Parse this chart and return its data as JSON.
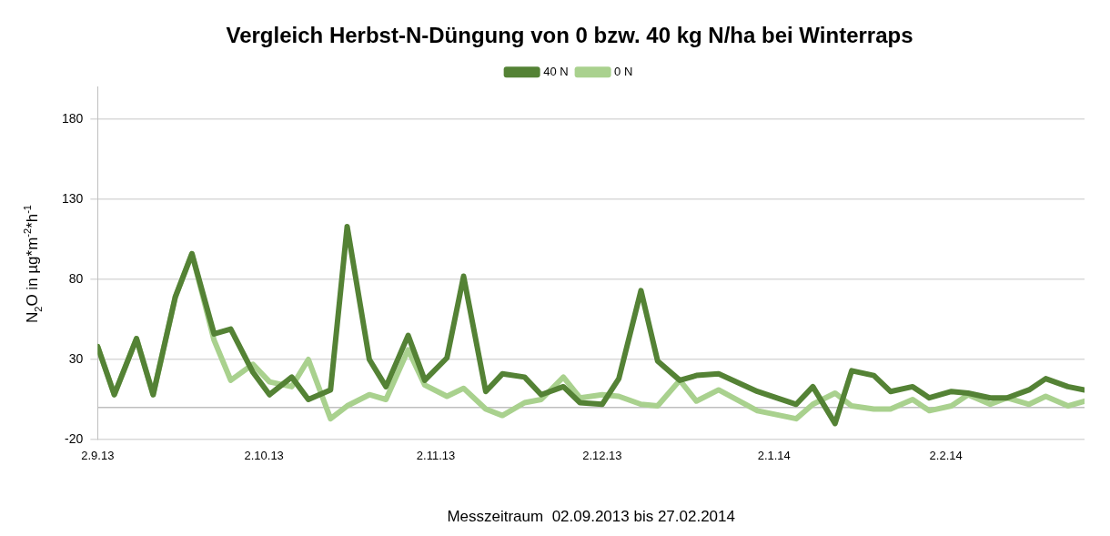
{
  "chart_data": {
    "type": "line",
    "title": "Vergleich Herbst-N-Düngung von 0 bzw. 40 kg N/ha bei Winterraps",
    "xlabel": "Messzeitraum  02.09.2013 bis 27.02.2014",
    "ylabel": "N$_{2}$O in µg*m$^{-2}$*h$^{-1}$",
    "x": [
      "2013-09-02",
      "2013-09-05",
      "2013-09-09",
      "2013-09-12",
      "2013-09-16",
      "2013-09-19",
      "2013-09-23",
      "2013-09-26",
      "2013-09-30",
      "2013-10-03",
      "2013-10-07",
      "2013-10-10",
      "2013-10-14",
      "2013-10-17",
      "2013-10-21",
      "2013-10-24",
      "2013-10-28",
      "2013-10-31",
      "2013-11-04",
      "2013-11-07",
      "2013-11-11",
      "2013-11-14",
      "2013-11-18",
      "2013-11-21",
      "2013-11-25",
      "2013-11-28",
      "2013-12-02",
      "2013-12-05",
      "2013-12-09",
      "2013-12-12",
      "2013-12-16",
      "2013-12-19",
      "2013-12-23",
      "2013-12-30",
      "2014-01-06",
      "2014-01-09",
      "2014-01-13",
      "2014-01-16",
      "2014-01-20",
      "2014-01-23",
      "2014-01-27",
      "2014-01-30",
      "2014-02-03",
      "2014-02-06",
      "2014-02-10",
      "2014-02-13",
      "2014-02-17",
      "2014-02-20",
      "2014-02-24",
      "2014-02-27"
    ],
    "series": [
      {
        "name": "40 N",
        "color": "#548235",
        "values": [
          38,
          8,
          43,
          8,
          69,
          96,
          46,
          49,
          22,
          8,
          19,
          5,
          11,
          113,
          30,
          13,
          45,
          17,
          31,
          82,
          10,
          21,
          19,
          8,
          13,
          3,
          2,
          18,
          73,
          29,
          17,
          20,
          21,
          10,
          2,
          13,
          -10,
          23,
          20,
          10,
          13,
          6,
          10,
          9,
          6,
          6,
          11,
          18,
          13,
          11
        ]
      },
      {
        "name": "0 N",
        "color": "#a9d18e",
        "values": [
          38,
          8,
          43,
          8,
          69,
          96,
          42,
          17,
          27,
          16,
          13,
          30,
          -7,
          1,
          8,
          5,
          36,
          14,
          7,
          12,
          -1,
          -5,
          3,
          5,
          19,
          6,
          8,
          7,
          2,
          1,
          17,
          4,
          11,
          -2,
          -7,
          2,
          9,
          1,
          -1,
          -1,
          5,
          -2,
          1,
          8,
          2,
          6,
          2,
          7,
          1,
          4
        ]
      }
    ],
    "xlim": [
      "2013-09-02",
      "2014-02-27"
    ],
    "xticks": [
      {
        "value": "2013-09-02",
        "label": "2.9.13"
      },
      {
        "value": "2013-10-02",
        "label": "2.10.13"
      },
      {
        "value": "2013-11-02",
        "label": "2.11.13"
      },
      {
        "value": "2013-12-02",
        "label": "2.12.13"
      },
      {
        "value": "2014-01-02",
        "label": "2.1.14"
      },
      {
        "value": "2014-02-02",
        "label": "2.2.14"
      }
    ],
    "ylim": [
      -20,
      200
    ],
    "yticks": [
      -20,
      30,
      80,
      130,
      180
    ],
    "ref_lines": [
      {
        "axis": "y",
        "value": 0,
        "label": null,
        "color": "#bfbfbf"
      }
    ],
    "grid": "y",
    "legend": "top",
    "marker": "none",
    "line_style": "solid"
  }
}
